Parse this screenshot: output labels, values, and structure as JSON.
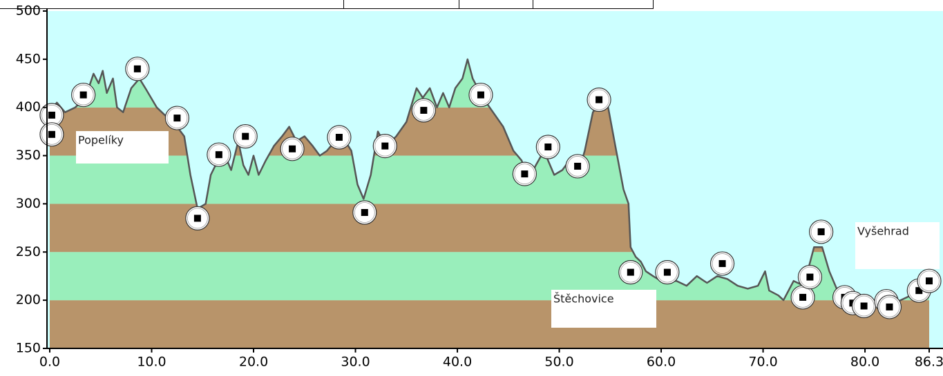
{
  "chart_data": {
    "type": "area",
    "x": [
      0,
      0.7,
      1.5,
      2.5,
      3.5,
      4.3,
      4.8,
      5.2,
      5.6,
      6.2,
      6.6,
      7.2,
      8.0,
      8.8,
      9.5,
      10.5,
      11.5,
      12.5,
      13.2,
      13.8,
      14.5,
      15.3,
      15.8,
      16.5,
      17.2,
      17.8,
      18.5,
      19.0,
      19.5,
      20.0,
      20.5,
      21.2,
      22.0,
      22.8,
      23.5,
      24.2,
      25.0,
      25.8,
      26.5,
      27.2,
      28.0,
      29.0,
      29.6,
      30.2,
      30.8,
      31.5,
      32.2,
      33.0,
      34.0,
      35.0,
      36.0,
      36.6,
      37.3,
      38.0,
      38.6,
      39.2,
      39.8,
      40.5,
      41.0,
      41.5,
      42.5,
      43.5,
      44.5,
      45.5,
      46.3,
      47.0,
      47.7,
      48.5,
      49.5,
      50.3,
      51.0,
      51.8,
      52.5,
      53.3,
      54.0,
      54.8,
      55.5,
      56.3,
      56.8,
      57.0,
      57.5,
      58.0,
      58.5,
      59.2,
      60.0,
      61.5,
      62.5,
      63.5,
      64.5,
      65.5,
      66.5,
      67.5,
      68.5,
      69.5,
      70.2,
      70.6,
      71.5,
      72.0,
      73.0,
      74.0,
      75.0,
      75.8,
      76.5,
      77.5,
      79.0,
      80.0,
      81.0,
      82.0,
      83.5,
      84.5,
      85.5,
      86.3
    ],
    "values": [
      395,
      405,
      395,
      400,
      410,
      435,
      425,
      438,
      415,
      430,
      400,
      395,
      420,
      430,
      418,
      400,
      390,
      380,
      370,
      330,
      295,
      300,
      330,
      345,
      350,
      335,
      365,
      340,
      330,
      350,
      330,
      345,
      360,
      370,
      380,
      365,
      370,
      360,
      350,
      355,
      365,
      365,
      355,
      320,
      305,
      330,
      375,
      360,
      370,
      385,
      420,
      410,
      420,
      400,
      415,
      400,
      420,
      430,
      450,
      430,
      410,
      395,
      380,
      355,
      345,
      325,
      340,
      355,
      330,
      335,
      345,
      330,
      355,
      395,
      405,
      400,
      360,
      315,
      300,
      255,
      245,
      240,
      230,
      225,
      220,
      220,
      215,
      225,
      218,
      225,
      222,
      215,
      212,
      215,
      230,
      210,
      205,
      200,
      220,
      215,
      255,
      255,
      230,
      205,
      195,
      190,
      195,
      190,
      200,
      205,
      215,
      220
    ],
    "waypoints": {
      "x": [
        0.2,
        0.2,
        3.3,
        8.6,
        12.5,
        14.5,
        16.6,
        19.2,
        23.8,
        28.4,
        30.9,
        32.9,
        36.7,
        42.3,
        46.6,
        48.9,
        51.8,
        53.9,
        57.0,
        60.6,
        66.0,
        73.9,
        74.6,
        75.7,
        78.0,
        78.8,
        79.9,
        82.1,
        82.4,
        85.3,
        86.3
      ],
      "y": [
        392,
        372,
        413,
        440,
        389,
        285,
        351,
        370,
        357,
        369,
        291,
        360,
        397,
        413,
        331,
        359,
        339,
        408,
        229,
        229,
        238,
        203,
        224,
        271,
        203,
        197,
        194,
        199,
        193,
        210,
        220
      ]
    },
    "places": [
      "Popelíky",
      "Štěchovice",
      "Vyšehrad"
    ],
    "xlim": [
      0,
      86.3
    ],
    "xticks": [
      {
        "value": 0,
        "label": "0.0"
      },
      {
        "value": 10,
        "label": "10.0"
      },
      {
        "value": 20,
        "label": "20.0"
      },
      {
        "value": 30,
        "label": "30.0"
      },
      {
        "value": 40,
        "label": "40.0"
      },
      {
        "value": 50,
        "label": "50.0"
      },
      {
        "value": 60,
        "label": "60.0"
      },
      {
        "value": 70,
        "label": "70.0"
      },
      {
        "value": 80,
        "label": "80.0"
      },
      86.3
    ],
    "ylim": [
      150,
      500
    ],
    "yticks": [
      150,
      200,
      250,
      300,
      350,
      400,
      450,
      500
    ],
    "line_color": "#555555",
    "sky_color": "#ccffff",
    "band_colors": [
      "#b8946a",
      "#99eebb"
    ]
  }
}
